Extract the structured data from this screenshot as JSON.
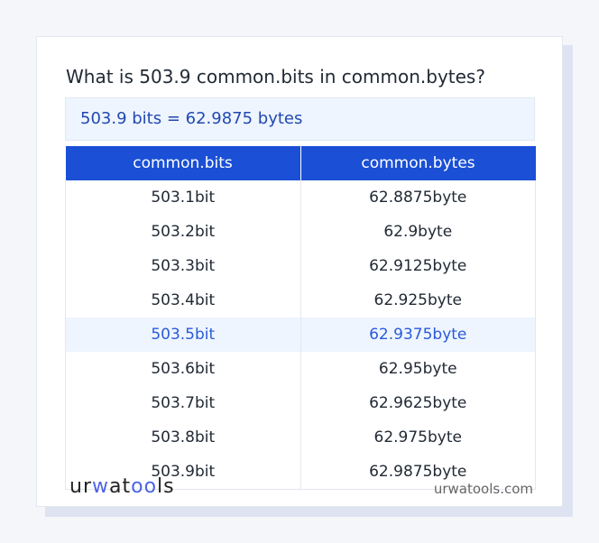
{
  "title": "What is 503.9 common.bits in common.bytes?",
  "result": "503.9 bits = 62.9875 bytes",
  "table": {
    "headers": [
      "common.bits",
      "common.bytes"
    ],
    "rows": [
      [
        "503.1bit",
        "62.8875byte"
      ],
      [
        "503.2bit",
        "62.9byte"
      ],
      [
        "503.3bit",
        "62.9125byte"
      ],
      [
        "503.4bit",
        "62.925byte"
      ],
      [
        "503.5bit",
        "62.9375byte"
      ],
      [
        "503.6bit",
        "62.95byte"
      ],
      [
        "503.7bit",
        "62.9625byte"
      ],
      [
        "503.8bit",
        "62.975byte"
      ],
      [
        "503.9bit",
        "62.9875byte"
      ]
    ],
    "highlighted_row": 4
  },
  "footer": {
    "logo": "urwatools",
    "site": "urwatools.com"
  },
  "colors": {
    "accent": "#1a4fd6",
    "highlight_bg": "#eef5ff"
  }
}
